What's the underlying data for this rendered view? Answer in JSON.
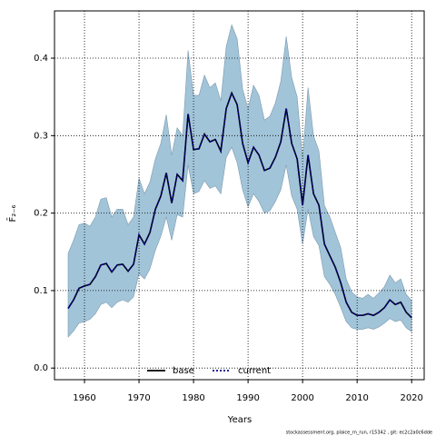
{
  "chart_data": {
    "type": "line",
    "xlabel": "Years",
    "ylabel": "F̄₂₋₆",
    "footer": "stockassessment.org, plaice_rn_run, r15342 , git: ec2c2a0c6dde",
    "x": [
      1957,
      1958,
      1959,
      1960,
      1961,
      1962,
      1963,
      1964,
      1965,
      1966,
      1967,
      1968,
      1969,
      1970,
      1971,
      1972,
      1973,
      1974,
      1975,
      1976,
      1977,
      1978,
      1979,
      1980,
      1981,
      1982,
      1983,
      1984,
      1985,
      1986,
      1987,
      1988,
      1989,
      1990,
      1991,
      1992,
      1993,
      1994,
      1995,
      1996,
      1997,
      1998,
      1999,
      2000,
      2001,
      2002,
      2003,
      2004,
      2005,
      2006,
      2007,
      2008,
      2009,
      2010,
      2011,
      2012,
      2013,
      2014,
      2015,
      2016,
      2017,
      2018,
      2019,
      2020
    ],
    "series": [
      {
        "name": "base",
        "color": "#000000",
        "style": "solid",
        "values": [
          0.077,
          0.088,
          0.103,
          0.106,
          0.108,
          0.118,
          0.133,
          0.135,
          0.124,
          0.133,
          0.134,
          0.125,
          0.134,
          0.172,
          0.16,
          0.175,
          0.205,
          0.222,
          0.252,
          0.213,
          0.25,
          0.242,
          0.328,
          0.282,
          0.283,
          0.302,
          0.292,
          0.295,
          0.28,
          0.335,
          0.355,
          0.34,
          0.29,
          0.265,
          0.285,
          0.275,
          0.255,
          0.258,
          0.272,
          0.292,
          0.335,
          0.29,
          0.27,
          0.21,
          0.275,
          0.225,
          0.21,
          0.16,
          0.145,
          0.13,
          0.11,
          0.085,
          0.072,
          0.068,
          0.068,
          0.07,
          0.068,
          0.072,
          0.078,
          0.088,
          0.082,
          0.085,
          0.072,
          0.065
        ]
      },
      {
        "name": "current",
        "color": "#00008b",
        "style": "dotted",
        "values": [
          0.077,
          0.088,
          0.103,
          0.106,
          0.108,
          0.118,
          0.133,
          0.135,
          0.124,
          0.133,
          0.134,
          0.125,
          0.134,
          0.172,
          0.16,
          0.175,
          0.205,
          0.222,
          0.252,
          0.213,
          0.25,
          0.242,
          0.328,
          0.282,
          0.283,
          0.302,
          0.292,
          0.295,
          0.28,
          0.335,
          0.355,
          0.34,
          0.29,
          0.265,
          0.285,
          0.275,
          0.255,
          0.258,
          0.272,
          0.292,
          0.335,
          0.29,
          0.27,
          0.21,
          0.275,
          0.225,
          0.21,
          0.16,
          0.145,
          0.13,
          0.11,
          0.085,
          0.072,
          0.068,
          0.068,
          0.07,
          0.068,
          0.072,
          0.078,
          0.088,
          0.082,
          0.085,
          0.072,
          0.065
        ]
      }
    ],
    "band": {
      "color": "#a2c4d8",
      "upper": [
        0.148,
        0.165,
        0.185,
        0.187,
        0.183,
        0.195,
        0.218,
        0.22,
        0.195,
        0.205,
        0.205,
        0.185,
        0.195,
        0.245,
        0.225,
        0.24,
        0.27,
        0.29,
        0.327,
        0.275,
        0.31,
        0.3,
        0.41,
        0.352,
        0.352,
        0.378,
        0.362,
        0.368,
        0.345,
        0.415,
        0.443,
        0.425,
        0.36,
        0.335,
        0.365,
        0.352,
        0.32,
        0.325,
        0.342,
        0.37,
        0.428,
        0.375,
        0.35,
        0.27,
        0.362,
        0.3,
        0.28,
        0.21,
        0.195,
        0.175,
        0.155,
        0.115,
        0.098,
        0.092,
        0.09,
        0.095,
        0.09,
        0.097,
        0.105,
        0.12,
        0.11,
        0.115,
        0.095,
        0.087
      ],
      "lower": [
        0.04,
        0.048,
        0.058,
        0.06,
        0.063,
        0.07,
        0.082,
        0.085,
        0.078,
        0.085,
        0.088,
        0.085,
        0.092,
        0.122,
        0.115,
        0.128,
        0.152,
        0.17,
        0.195,
        0.165,
        0.198,
        0.195,
        0.262,
        0.225,
        0.228,
        0.242,
        0.232,
        0.235,
        0.225,
        0.272,
        0.285,
        0.265,
        0.23,
        0.208,
        0.225,
        0.215,
        0.2,
        0.203,
        0.215,
        0.23,
        0.262,
        0.222,
        0.205,
        0.16,
        0.205,
        0.17,
        0.158,
        0.118,
        0.108,
        0.095,
        0.078,
        0.06,
        0.052,
        0.05,
        0.05,
        0.052,
        0.05,
        0.053,
        0.058,
        0.064,
        0.06,
        0.062,
        0.052,
        0.047
      ]
    },
    "xlim": [
      1954.5,
      2022.3
    ],
    "ylim": [
      -0.015,
      0.461
    ],
    "xticks": [
      1960,
      1970,
      1980,
      1990,
      2000,
      2010,
      2020
    ],
    "yticks": [
      {
        "value": 0,
        "label": "0.0"
      },
      0.1,
      0.2,
      0.3,
      0.4
    ],
    "grid": true,
    "legend": "bottom"
  }
}
